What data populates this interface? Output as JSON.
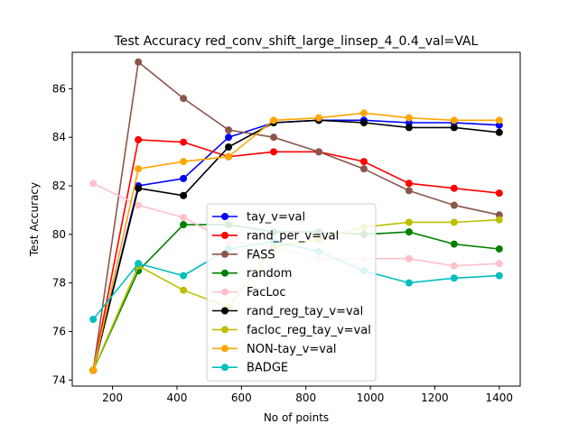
{
  "chart_data": {
    "type": "line",
    "title": "Test Accuracy red_conv_shift_large_linsep_4_0.4_val=VAL",
    "xlabel": "No of points",
    "ylabel": "Test Accuracy",
    "xlim": [
      75,
      1465
    ],
    "ylim": [
      73.75,
      87.5
    ],
    "xticks": [
      200,
      400,
      600,
      800,
      1000,
      1200,
      1400
    ],
    "yticks": [
      74,
      76,
      78,
      80,
      82,
      84,
      86
    ],
    "grid": false,
    "legend_position": "center",
    "x": [
      140,
      280,
      420,
      560,
      700,
      840,
      980,
      1120,
      1260,
      1400
    ],
    "series": [
      {
        "name": "tay_v=val",
        "color": "#0000ff",
        "values": [
          74.4,
          82.0,
          82.3,
          84.0,
          84.6,
          84.7,
          84.7,
          84.6,
          84.6,
          84.5
        ]
      },
      {
        "name": "rand_per_v=val",
        "color": "#ff0000",
        "values": [
          74.4,
          83.9,
          83.8,
          83.2,
          83.4,
          83.4,
          83.0,
          82.1,
          81.9,
          81.7
        ]
      },
      {
        "name": "FASS",
        "color": "#8c564b",
        "values": [
          74.4,
          87.1,
          85.6,
          84.3,
          84.0,
          83.4,
          82.7,
          81.8,
          81.2,
          80.8
        ]
      },
      {
        "name": "random",
        "color": "#008000",
        "values": [
          74.4,
          78.5,
          80.4,
          80.4,
          80.1,
          80.1,
          80.0,
          80.1,
          79.6,
          79.4
        ]
      },
      {
        "name": "FacLoc",
        "color": "#ffc0cb",
        "values": [
          82.1,
          81.2,
          80.7,
          79.7,
          79.5,
          79.0,
          79.0,
          79.0,
          78.7,
          78.8
        ]
      },
      {
        "name": "rand_reg_tay_v=val",
        "color": "#000000",
        "values": [
          74.4,
          81.9,
          81.6,
          83.6,
          84.6,
          84.7,
          84.6,
          84.4,
          84.4,
          84.2
        ]
      },
      {
        "name": "facloc_reg_tay_v=val",
        "color": "#bfbf00",
        "values": [
          74.4,
          78.7,
          77.7,
          77.0,
          79.5,
          79.8,
          80.3,
          80.5,
          80.5,
          80.6
        ]
      },
      {
        "name": "NON-tay_v=val",
        "color": "#ffa500",
        "values": [
          74.4,
          82.7,
          83.0,
          83.2,
          84.7,
          84.8,
          85.0,
          84.8,
          84.7,
          84.7
        ]
      },
      {
        "name": "BADGE",
        "color": "#00bfbf",
        "values": [
          76.5,
          78.8,
          78.3,
          79.4,
          79.7,
          79.3,
          78.5,
          78.0,
          78.2,
          78.3
        ]
      }
    ]
  }
}
